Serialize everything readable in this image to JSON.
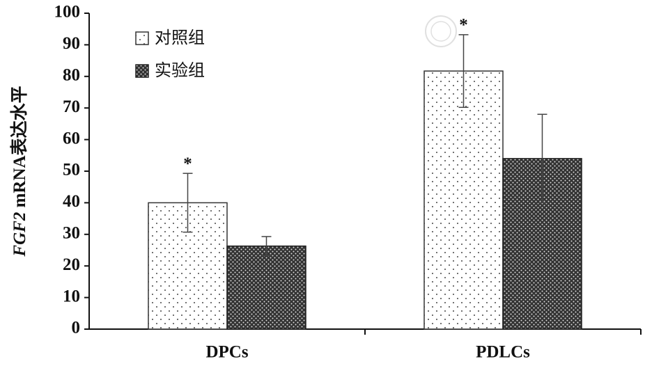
{
  "chart_data": {
    "type": "bar",
    "ylabel": "FGF2 mRNA表达水平",
    "categories": [
      "DPCs",
      "PDLCs"
    ],
    "series": [
      {
        "name": "对照组",
        "color": "#333333",
        "pattern": "dots",
        "values": [
          40,
          81.7
        ],
        "errors": [
          9.3,
          11.5
        ],
        "significance": [
          "*",
          "*"
        ]
      },
      {
        "name": "实验组",
        "color": "#222222",
        "pattern": "crosshatch",
        "values": [
          26.3,
          54
        ],
        "errors": [
          3,
          14
        ]
      }
    ],
    "ylim": [
      0,
      100
    ],
    "yticks": [
      0,
      10,
      20,
      30,
      40,
      50,
      60,
      70,
      80,
      90,
      100
    ],
    "legend": "upper left"
  }
}
